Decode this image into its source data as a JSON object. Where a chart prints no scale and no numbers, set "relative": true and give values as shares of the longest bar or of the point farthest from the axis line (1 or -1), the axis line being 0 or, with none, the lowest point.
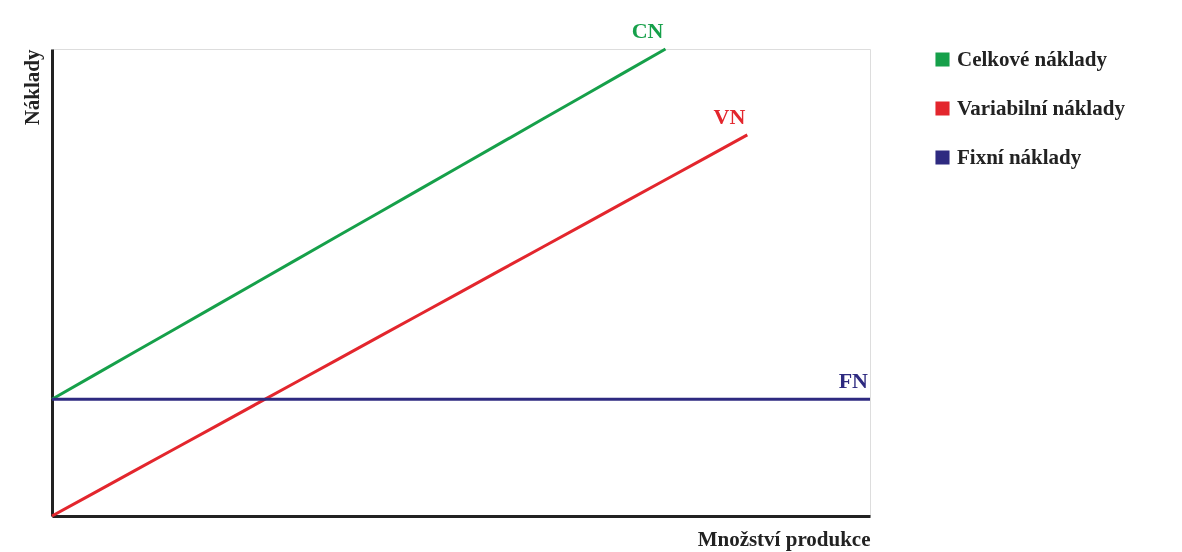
{
  "chart_data": {
    "type": "line",
    "relative": true,
    "xlabel": "Množství produkce",
    "ylabel": "Náklady",
    "tick_labels": false,
    "legend": "right",
    "grid": false,
    "line_style": "solid",
    "categories": [
      null,
      null,
      null,
      null,
      null,
      null,
      null,
      null,
      null,
      null,
      null,
      null,
      null,
      null,
      null,
      null,
      null,
      null,
      null,
      null,
      null
    ],
    "series": [
      {
        "name": "Celkové náklady",
        "color": "#16a04a",
        "values": [
          0.25,
          0.3,
          0.35,
          0.4,
          0.45,
          0.5,
          0.55,
          0.6,
          0.65,
          0.7,
          0.75,
          0.8,
          0.85,
          0.9,
          0.95,
          1.0,
          null,
          null,
          null,
          null,
          null
        ]
      },
      {
        "name": "Variabilní náklady",
        "color": "#e3262d",
        "values": [
          0,
          0.048,
          0.096,
          0.144,
          0.192,
          0.24,
          0.288,
          0.336,
          0.384,
          0.432,
          0.48,
          0.528,
          0.576,
          0.624,
          0.672,
          0.72,
          0.768,
          0.816,
          null,
          null,
          null
        ]
      },
      {
        "name": "Fixní náklady",
        "color": "#2e2a80",
        "values": [
          0.25,
          0.25,
          0.25,
          0.25,
          0.25,
          0.25,
          0.25,
          0.25,
          0.25,
          0.25,
          0.25,
          0.25,
          0.25,
          0.25,
          0.25,
          0.25,
          0.25,
          0.25,
          0.25,
          0.25,
          0.25
        ]
      }
    ],
    "annotations": [
      "CN",
      "VN",
      "FN"
    ]
  }
}
